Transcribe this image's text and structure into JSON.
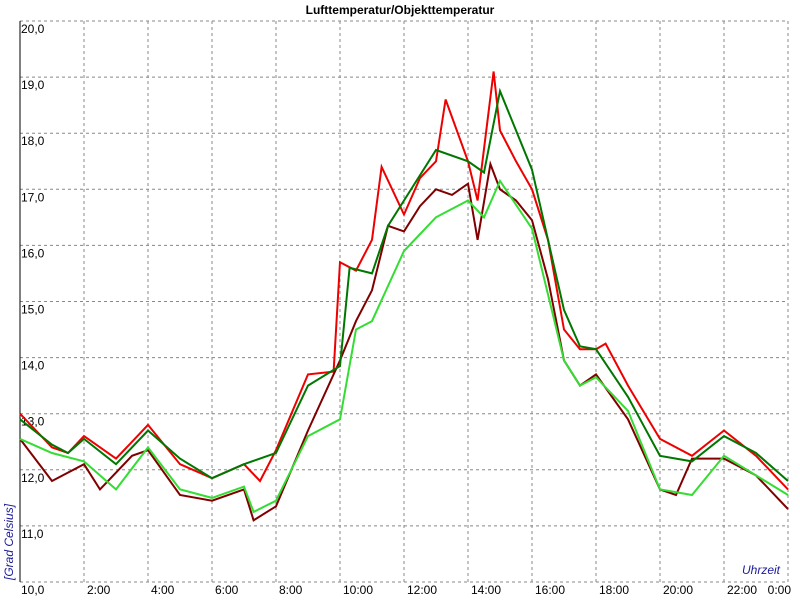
{
  "chart_data": {
    "type": "line",
    "title": "Lufttemperatur/Objekttemperatur",
    "x_label": "Uhrzeit",
    "y_label": "[Grad Celsius]",
    "xlim": [
      0,
      24
    ],
    "ylim": [
      10,
      20
    ],
    "grid": true,
    "xticks": [
      {
        "value": 2,
        "label": "2:00"
      },
      {
        "value": 4,
        "label": "4:00"
      },
      {
        "value": 6,
        "label": "6:00"
      },
      {
        "value": 8,
        "label": "8:00"
      },
      {
        "value": 10,
        "label": "10:00"
      },
      {
        "value": 12,
        "label": "12:00"
      },
      {
        "value": 14,
        "label": "14:00"
      },
      {
        "value": 16,
        "label": "16:00"
      },
      {
        "value": 18,
        "label": "18:00"
      },
      {
        "value": 20,
        "label": "20:00"
      },
      {
        "value": 22,
        "label": "22:00"
      },
      {
        "value": 24,
        "label": "0:00"
      }
    ],
    "yticks": [
      {
        "value": 10,
        "label": "10,0"
      },
      {
        "value": 11,
        "label": "11,0"
      },
      {
        "value": 12,
        "label": "12,0"
      },
      {
        "value": 13,
        "label": "13,0"
      },
      {
        "value": 14,
        "label": "14,0"
      },
      {
        "value": 15,
        "label": "15,0"
      },
      {
        "value": 16,
        "label": "16,0"
      },
      {
        "value": 17,
        "label": "17,0"
      },
      {
        "value": 18,
        "label": "18,0"
      },
      {
        "value": 19,
        "label": "19,0"
      },
      {
        "value": 20,
        "label": "20,0"
      }
    ],
    "series": [
      {
        "color": "#ee0000",
        "x": [
          0,
          1,
          1.5,
          2,
          3,
          3.5,
          4,
          5,
          6,
          7,
          7.5,
          8,
          9,
          9.8,
          10,
          10.5,
          11,
          11.3,
          12,
          12.5,
          13,
          13.3,
          14,
          14.3,
          14.8,
          15,
          15.5,
          16,
          16.5,
          17,
          17.5,
          18,
          18.3,
          19,
          20,
          21,
          22,
          23,
          24
        ],
        "values": [
          13.0,
          12.4,
          12.3,
          12.6,
          12.2,
          12.5,
          12.8,
          12.1,
          11.85,
          12.1,
          11.8,
          12.35,
          13.7,
          13.75,
          15.7,
          15.55,
          16.1,
          17.4,
          16.55,
          17.2,
          17.5,
          18.6,
          17.5,
          16.8,
          19.1,
          18.05,
          17.5,
          17.0,
          16.1,
          14.5,
          14.15,
          14.15,
          14.25,
          13.5,
          12.55,
          12.25,
          12.7,
          12.25,
          11.65
        ]
      },
      {
        "color": "#800000",
        "x": [
          0,
          1,
          2,
          2.5,
          3.5,
          4,
          5,
          6,
          7,
          7.3,
          8,
          9,
          10,
          10.5,
          11,
          11.5,
          12,
          12.5,
          13,
          13.5,
          14,
          14.3,
          14.7,
          15,
          15.5,
          16,
          16.5,
          17,
          17.5,
          18,
          19,
          20,
          20.5,
          21,
          22,
          23,
          24
        ],
        "values": [
          12.55,
          11.8,
          12.1,
          11.65,
          12.25,
          12.35,
          11.55,
          11.45,
          11.65,
          11.1,
          11.35,
          12.7,
          13.95,
          14.65,
          15.2,
          16.35,
          16.25,
          16.7,
          17.0,
          16.9,
          17.1,
          16.1,
          17.45,
          17.0,
          16.8,
          16.45,
          15.4,
          13.95,
          13.5,
          13.7,
          12.9,
          11.65,
          11.55,
          12.2,
          12.2,
          11.9,
          11.3
        ]
      },
      {
        "color": "#007700",
        "x": [
          0,
          1,
          1.5,
          2,
          3,
          4,
          5,
          6,
          7,
          8,
          9,
          10,
          10.3,
          11,
          11.5,
          12,
          13,
          14,
          14.5,
          15,
          16,
          17,
          17.5,
          18,
          19,
          20,
          21,
          22,
          23,
          24
        ],
        "values": [
          12.9,
          12.45,
          12.3,
          12.55,
          12.1,
          12.7,
          12.2,
          11.85,
          12.1,
          12.3,
          13.5,
          13.85,
          15.6,
          15.5,
          16.35,
          16.8,
          17.7,
          17.5,
          17.3,
          18.75,
          17.35,
          14.85,
          14.2,
          14.15,
          13.3,
          12.25,
          12.15,
          12.6,
          12.3,
          11.8
        ]
      },
      {
        "color": "#33dd33",
        "x": [
          0,
          1,
          2,
          3,
          4,
          5,
          6,
          7,
          7.3,
          8,
          9,
          10,
          10.5,
          11,
          12,
          13,
          14,
          14.5,
          15,
          16,
          17,
          17.5,
          18,
          19,
          20,
          21,
          22,
          23,
          24
        ],
        "values": [
          12.55,
          12.3,
          12.15,
          11.65,
          12.4,
          11.65,
          11.5,
          11.7,
          11.25,
          11.45,
          12.6,
          12.9,
          14.5,
          14.65,
          15.9,
          16.5,
          16.8,
          16.5,
          17.15,
          16.3,
          13.95,
          13.5,
          13.65,
          13.05,
          11.65,
          11.55,
          12.25,
          11.9,
          11.55
        ]
      }
    ]
  }
}
